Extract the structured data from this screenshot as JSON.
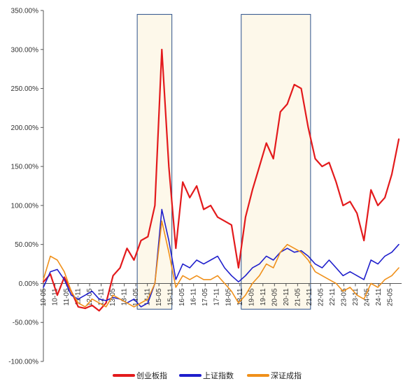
{
  "chart_data": {
    "type": "line",
    "title": "",
    "xlabel": "",
    "ylabel": "",
    "ylim": [
      -1.0,
      3.5
    ],
    "y_tick_labels": [
      "350.00%",
      "300.00%",
      "250.00%",
      "200.00%",
      "150.00%",
      "100.00%",
      "50.00%",
      "0.00%",
      "-50.00%",
      "-100.00%"
    ],
    "x_tick_labels": [
      "10-05",
      "10-11",
      "11-05",
      "11-11",
      "12-05",
      "12-11",
      "13-05",
      "13-11",
      "14-05",
      "14-11",
      "15-05",
      "15-11",
      "16-05",
      "16-11",
      "17-05",
      "17-11",
      "18-05",
      "18-11",
      "19-05",
      "19-11",
      "20-05",
      "20-11",
      "21-05",
      "21-11",
      "22-05",
      "22-11",
      "23-05",
      "23-11",
      "24-05",
      "24-11",
      "25-05"
    ],
    "legend_position": "bottom",
    "grid": false,
    "highlight_periods": [
      {
        "start": "14-05",
        "end": "15-11"
      },
      {
        "start": "18-11",
        "end": "21-11"
      }
    ],
    "series": [
      {
        "name": "创业板指",
        "color": "#e31a1c",
        "values": [
          0.02,
          0.12,
          -0.15,
          0.08,
          -0.1,
          -0.3,
          -0.32,
          -0.28,
          -0.35,
          -0.25,
          0.1,
          0.2,
          0.45,
          0.3,
          0.55,
          0.6,
          1.0,
          3.0,
          1.5,
          0.45,
          1.3,
          1.1,
          1.25,
          0.95,
          1.0,
          0.85,
          0.8,
          0.75,
          0.2,
          0.85,
          1.2,
          1.5,
          1.8,
          1.6,
          2.2,
          2.3,
          2.55,
          2.5,
          2.0,
          1.6,
          1.5,
          1.55,
          1.3,
          1.0,
          1.05,
          0.9,
          0.55,
          1.2,
          1.0,
          1.1,
          1.4,
          1.85
        ]
      },
      {
        "name": "上证指数",
        "color": "#1f1fcc",
        "values": [
          -0.05,
          0.15,
          0.18,
          0.05,
          -0.15,
          -0.2,
          -0.15,
          -0.1,
          -0.2,
          -0.22,
          -0.18,
          -0.2,
          -0.25,
          -0.2,
          -0.3,
          -0.25,
          0.0,
          0.95,
          0.55,
          0.05,
          0.25,
          0.2,
          0.3,
          0.25,
          0.3,
          0.35,
          0.2,
          0.1,
          0.02,
          0.1,
          0.2,
          0.25,
          0.35,
          0.3,
          0.4,
          0.45,
          0.4,
          0.42,
          0.35,
          0.25,
          0.2,
          0.3,
          0.2,
          0.1,
          0.15,
          0.1,
          0.05,
          0.3,
          0.25,
          0.35,
          0.4,
          0.5
        ]
      },
      {
        "name": "深证成指",
        "color": "#f0901a",
        "values": [
          0.05,
          0.35,
          0.3,
          0.15,
          -0.1,
          -0.25,
          -0.3,
          -0.2,
          -0.25,
          -0.3,
          -0.15,
          -0.2,
          -0.25,
          -0.3,
          -0.25,
          -0.2,
          0.0,
          0.8,
          0.4,
          -0.05,
          0.1,
          0.05,
          0.1,
          0.05,
          0.05,
          0.1,
          0.0,
          -0.1,
          -0.25,
          -0.15,
          0.0,
          0.1,
          0.25,
          0.2,
          0.4,
          0.5,
          0.45,
          0.4,
          0.3,
          0.15,
          0.1,
          0.05,
          0.0,
          -0.1,
          -0.05,
          -0.15,
          -0.2,
          0.0,
          -0.05,
          0.05,
          0.1,
          0.2
        ]
      }
    ]
  }
}
